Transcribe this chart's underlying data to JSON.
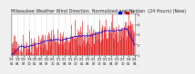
{
  "title_text": "Milwaukee Weather Wind Direction  Normalized and Median  (24 Hours) (New)",
  "background_color": "#f0f0f0",
  "plot_bg_color": "#ffffff",
  "bar_color": "#dd0000",
  "median_color": "#0000dd",
  "legend_color1": "#0000cc",
  "legend_color2": "#cc0000",
  "ylim": [
    1.0,
    5.0
  ],
  "yticks": [
    1,
    2,
    3,
    4,
    5
  ],
  "grid_color": "#bbbbbb",
  "title_fontsize": 3.5,
  "tick_fontsize": 2.5,
  "n_points": 220,
  "seed": 42
}
